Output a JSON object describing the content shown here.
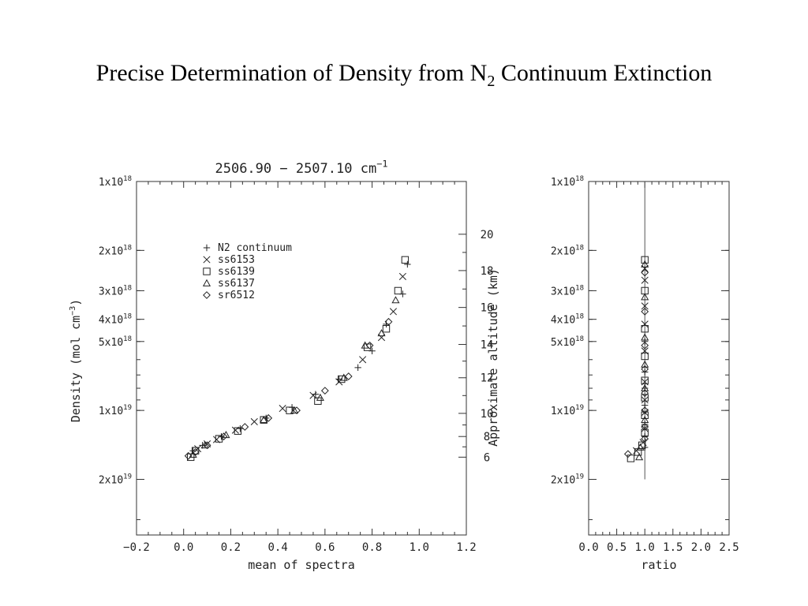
{
  "slide": {
    "title_main": "Precise Determination of Density from N",
    "title_sub": "2",
    "title_tail": " Continuum Extinction"
  },
  "chart_data": [
    {
      "type": "scatter",
      "title": "2506.90 − 2507.10 cm",
      "title_sup": "−1",
      "xlabel": "mean of spectra",
      "ylabel": "Density (mol cm",
      "ylabel_sup": "−3",
      "ylabel_tail": ")",
      "y2label": "Approximate altitude (km)",
      "y_scale": "log",
      "y_inverted": true,
      "xlim": [
        -0.2,
        1.2
      ],
      "ylim": [
        1e+18,
        3.5e+19
      ],
      "x_ticks": [
        "−0.2",
        "0.0",
        "0.2",
        "0.4",
        "0.6",
        "0.8",
        "1.0",
        "1.2"
      ],
      "y_ticks": [
        {
          "mant": "1x10",
          "exp": "18",
          "value": 1e+18
        },
        {
          "mant": "2x10",
          "exp": "18",
          "value": 2e+18
        },
        {
          "mant": "3x10",
          "exp": "18",
          "value": 3e+18
        },
        {
          "mant": "4x10",
          "exp": "18",
          "value": 4e+18
        },
        {
          "mant": "5x10",
          "exp": "18",
          "value": 5e+18
        },
        {
          "mant": "1x10",
          "exp": "19",
          "value": 1e+19
        },
        {
          "mant": "2x10",
          "exp": "19",
          "value": 2e+19
        }
      ],
      "y2_ticks": [
        {
          "label": "20",
          "density": 1.7e+18
        },
        {
          "label": "18",
          "density": 2.45e+18
        },
        {
          "label": "16",
          "density": 3.55e+18
        },
        {
          "label": "14",
          "density": 5.15e+18
        },
        {
          "label": "12",
          "density": 7.2e+18
        },
        {
          "label": "10",
          "density": 1.03e+19
        },
        {
          "label": "8",
          "density": 1.3e+19
        },
        {
          "label": "6",
          "density": 1.6e+19
        }
      ],
      "legend_position": "top-left",
      "series": [
        {
          "name": "N2 continuum",
          "marker": "plus",
          "points": [
            [
              0.95,
              2.3e+18
            ],
            [
              0.93,
              3.1e+18
            ],
            [
              0.86,
              4.2e+18
            ],
            [
              0.8,
              5.5e+18
            ],
            [
              0.74,
              6.5e+18
            ],
            [
              0.66,
              7.3e+18
            ],
            [
              0.56,
              8.5e+18
            ],
            [
              0.46,
              9.7e+18
            ],
            [
              0.35,
              1.08e+19
            ],
            [
              0.24,
              1.2e+19
            ],
            [
              0.16,
              1.3e+19
            ],
            [
              0.08,
              1.42e+19
            ],
            [
              0.04,
              1.5e+19
            ]
          ]
        },
        {
          "name": "ss6153",
          "marker": "x",
          "points": [
            [
              0.93,
              2.6e+18
            ],
            [
              0.89,
              3.7e+18
            ],
            [
              0.84,
              4.8e+18
            ],
            [
              0.76,
              6e+18
            ],
            [
              0.66,
              7.5e+18
            ],
            [
              0.55,
              8.6e+18
            ],
            [
              0.42,
              9.8e+18
            ],
            [
              0.3,
              1.12e+19
            ],
            [
              0.22,
              1.22e+19
            ],
            [
              0.14,
              1.34e+19
            ],
            [
              0.1,
              1.4e+19
            ],
            [
              0.06,
              1.47e+19
            ]
          ]
        },
        {
          "name": "ss6139",
          "marker": "square",
          "points": [
            [
              0.94,
              2.2e+18
            ],
            [
              0.91,
              3e+18
            ],
            [
              0.86,
              4.4e+18
            ],
            [
              0.78,
              5.3e+18
            ],
            [
              0.67,
              7.3e+18
            ],
            [
              0.57,
              9.1e+18
            ],
            [
              0.45,
              1e+19
            ],
            [
              0.34,
              1.1e+19
            ],
            [
              0.23,
              1.23e+19
            ],
            [
              0.15,
              1.33e+19
            ],
            [
              0.05,
              1.5e+19
            ],
            [
              0.03,
              1.6e+19
            ]
          ]
        },
        {
          "name": "ss6137",
          "marker": "triangle",
          "points": [
            [
              0.9,
              3.3e+18
            ],
            [
              0.84,
              4.6e+18
            ],
            [
              0.77,
              5.2e+18
            ],
            [
              0.68,
              7.2e+18
            ],
            [
              0.58,
              8.8e+18
            ],
            [
              0.47,
              1e+19
            ],
            [
              0.34,
              1.1e+19
            ],
            [
              0.18,
              1.28e+19
            ],
            [
              0.09,
              1.42e+19
            ],
            [
              0.04,
              1.56e+19
            ]
          ]
        },
        {
          "name": "sr6512",
          "marker": "diamond",
          "points": [
            [
              0.87,
              4.1e+18
            ],
            [
              0.79,
              5.2e+18
            ],
            [
              0.7,
              7.1e+18
            ],
            [
              0.6,
              8.2e+18
            ],
            [
              0.48,
              1e+19
            ],
            [
              0.36,
              1.08e+19
            ],
            [
              0.26,
              1.18e+19
            ],
            [
              0.17,
              1.3e+19
            ],
            [
              0.1,
              1.42e+19
            ],
            [
              0.05,
              1.52e+19
            ],
            [
              0.02,
              1.58e+19
            ]
          ]
        }
      ]
    },
    {
      "type": "scatter",
      "xlabel": "ratio",
      "y_scale": "log",
      "y_inverted": true,
      "xlim": [
        0.0,
        2.5
      ],
      "ylim": [
        1e+18,
        3.5e+19
      ],
      "x_ticks": [
        "0.0",
        "0.5",
        "1.0",
        "1.5",
        "2.0",
        "2.5"
      ],
      "y_ticks": [
        {
          "mant": "1x10",
          "exp": "18",
          "value": 1e+18
        },
        {
          "mant": "2x10",
          "exp": "18",
          "value": 2e+18
        },
        {
          "mant": "3x10",
          "exp": "18",
          "value": 3e+18
        },
        {
          "mant": "4x10",
          "exp": "18",
          "value": 4e+18
        },
        {
          "mant": "5x10",
          "exp": "18",
          "value": 5e+18
        },
        {
          "mant": "1x10",
          "exp": "19",
          "value": 1e+19
        },
        {
          "mant": "2x10",
          "exp": "19",
          "value": 2e+19
        }
      ],
      "reference_line": {
        "x": 1.0,
        "y_from": 1e+18,
        "y_to": 2e+19
      },
      "series": [
        {
          "name": "N2 continuum",
          "marker": "plus",
          "points": [
            [
              1.0,
              5e+18
            ],
            [
              1.0,
              6.8e+18
            ],
            [
              1.0,
              8e+18
            ],
            [
              1.0,
              9.5e+18
            ],
            [
              1.0,
              1.15e+19
            ],
            [
              1.0,
              1.3e+19
            ],
            [
              1.0,
              1.45e+19
            ]
          ]
        },
        {
          "name": "ss6153",
          "marker": "x",
          "points": [
            [
              1.0,
              2.4e+18
            ],
            [
              1.0,
              2.7e+18
            ],
            [
              1.0,
              3.5e+18
            ],
            [
              1.0,
              4.2e+18
            ],
            [
              1.0,
              5.5e+18
            ],
            [
              1.0,
              7.5e+18
            ],
            [
              1.0,
              9e+18
            ],
            [
              1.0,
              1.02e+19
            ],
            [
              1.0,
              1.2e+19
            ],
            [
              0.97,
              1.38e+19
            ],
            [
              0.85,
              1.5e+19
            ]
          ]
        },
        {
          "name": "ss6139",
          "marker": "square",
          "points": [
            [
              1.0,
              2.2e+18
            ],
            [
              1.0,
              3e+18
            ],
            [
              1.0,
              4.4e+18
            ],
            [
              1.0,
              5.8e+18
            ],
            [
              1.0,
              7.4e+18
            ],
            [
              1.0,
              8.8e+18
            ],
            [
              1.0,
              1.05e+19
            ],
            [
              1.0,
              1.25e+19
            ],
            [
              0.95,
              1.42e+19
            ],
            [
              0.88,
              1.52e+19
            ],
            [
              0.75,
              1.62e+19
            ]
          ]
        },
        {
          "name": "ss6137",
          "marker": "triangle",
          "points": [
            [
              1.0,
              2.3e+18
            ],
            [
              1.0,
              3.2e+18
            ],
            [
              1.0,
              4.8e+18
            ],
            [
              1.0,
              6.3e+18
            ],
            [
              1.0,
              8e+18
            ],
            [
              1.0,
              1.1e+19
            ],
            [
              0.92,
              1.45e+19
            ],
            [
              0.9,
              1.6e+19
            ]
          ]
        },
        {
          "name": "sr6512",
          "marker": "diamond",
          "points": [
            [
              1.0,
              2.5e+18
            ],
            [
              1.0,
              3.7e+18
            ],
            [
              1.0,
              5.2e+18
            ],
            [
              1.0,
              6.6e+18
            ],
            [
              1.0,
              8.4e+18
            ],
            [
              1.0,
              1e+19
            ],
            [
              1.0,
              1.18e+19
            ],
            [
              1.0,
              1.33e+19
            ],
            [
              0.7,
              1.55e+19
            ]
          ]
        }
      ]
    }
  ]
}
